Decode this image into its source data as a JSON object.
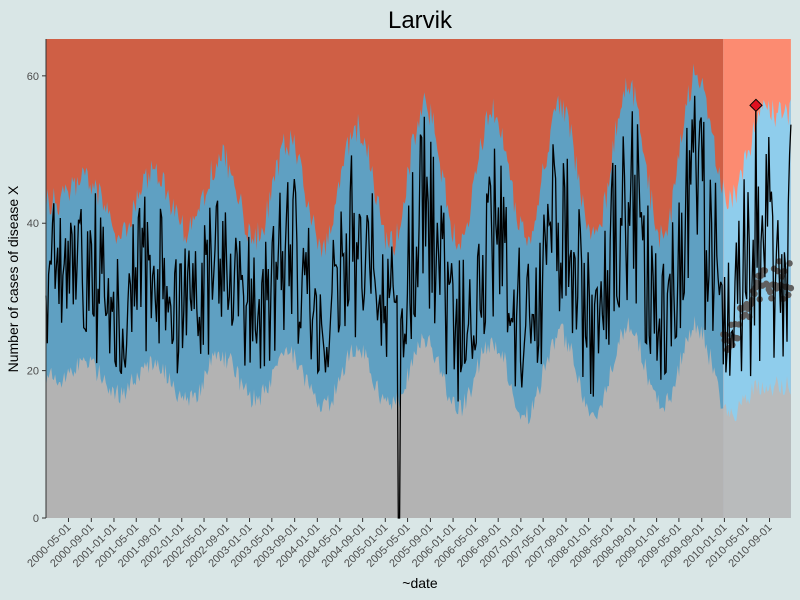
{
  "chart_data": {
    "type": "area",
    "title": "Larvik",
    "xlabel": "~date",
    "ylabel": "Number of cases of disease X",
    "ylim": [
      0,
      65
    ],
    "xlim": [
      "2000-01-01",
      "2010-12-31"
    ],
    "y_ticks": [
      0,
      20,
      40,
      60
    ],
    "x_tick_labels": [
      "2000-05-01",
      "2000-09-01",
      "2001-01-01",
      "2001-05-01",
      "2001-09-01",
      "2002-01-01",
      "2002-05-01",
      "2002-09-01",
      "2003-01-01",
      "2003-05-01",
      "2003-09-01",
      "2004-01-01",
      "2004-05-01",
      "2004-09-01",
      "2005-01-01",
      "2005-05-01",
      "2005-09-01",
      "2006-01-01",
      "2006-05-01",
      "2006-09-01",
      "2007-01-01",
      "2007-05-01",
      "2007-09-01",
      "2008-01-01",
      "2008-05-01",
      "2008-09-01",
      "2009-01-01",
      "2009-05-01",
      "2009-09-01",
      "2010-01-01",
      "2010-05-01",
      "2010-09-01"
    ],
    "grid": false,
    "prediction_start": "2010-01-01",
    "outbreak_point": {
      "date": "2010-06-20",
      "value": 56
    },
    "zone_colors": {
      "below": "#b3b3b3",
      "normal": "#5fa0c2",
      "above": "#cf5f45",
      "below_forecast": "#b9bbbc",
      "normal_forecast": "#8fcdec",
      "above_forecast": "#fc8b71",
      "observed_line": "#000000",
      "baseline_points": "#606060",
      "outbreak_marker": "#e0101f"
    },
    "series_description": [
      {
        "date": "2000-03-01",
        "lower": 19,
        "upper": 43
      },
      {
        "date": "2000-08-01",
        "lower": 21,
        "upper": 46
      },
      {
        "date": "2001-02-01",
        "lower": 17,
        "upper": 39
      },
      {
        "date": "2001-08-01",
        "lower": 21,
        "upper": 47
      },
      {
        "date": "2002-02-01",
        "lower": 16,
        "upper": 39
      },
      {
        "date": "2002-08-01",
        "lower": 22,
        "upper": 49
      },
      {
        "date": "2003-02-01",
        "lower": 16,
        "upper": 38
      },
      {
        "date": "2003-08-01",
        "lower": 22,
        "upper": 51
      },
      {
        "date": "2004-02-01",
        "lower": 15,
        "upper": 37
      },
      {
        "date": "2004-08-01",
        "lower": 23,
        "upper": 53
      },
      {
        "date": "2005-02-01",
        "lower": 15,
        "upper": 37
      },
      {
        "date": "2005-08-01",
        "lower": 24,
        "upper": 56
      },
      {
        "date": "2006-02-01",
        "lower": 15,
        "upper": 38
      },
      {
        "date": "2006-08-01",
        "lower": 24,
        "upper": 55
      },
      {
        "date": "2007-02-01",
        "lower": 14,
        "upper": 38
      },
      {
        "date": "2007-08-01",
        "lower": 25,
        "upper": 56
      },
      {
        "date": "2008-02-01",
        "lower": 14,
        "upper": 38
      },
      {
        "date": "2008-08-01",
        "lower": 26,
        "upper": 59
      },
      {
        "date": "2009-02-01",
        "lower": 15,
        "upper": 38
      },
      {
        "date": "2009-08-01",
        "lower": 26,
        "upper": 60
      },
      {
        "date": "2010-02-01",
        "lower": 14,
        "upper": 43
      },
      {
        "date": "2010-08-01",
        "lower": 18,
        "upper": 55
      }
    ],
    "observed_notes": {
      "min_point": {
        "date": "2005-03-15",
        "value": 0
      }
    }
  }
}
